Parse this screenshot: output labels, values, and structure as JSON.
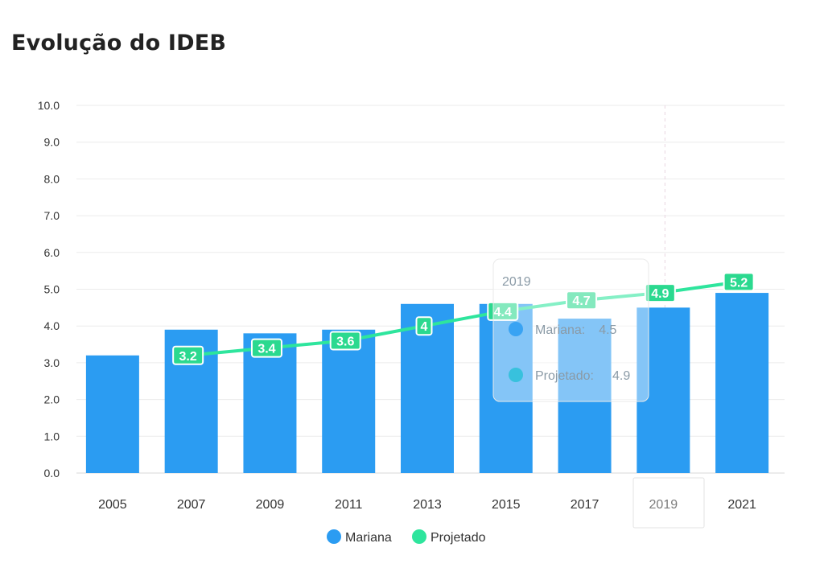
{
  "page": {
    "title": "Evolução do IDEB"
  },
  "chart_data": {
    "type": "bar",
    "title": "Evolução do IDEB",
    "xlabel": "",
    "ylabel": "",
    "ylim": [
      0,
      10
    ],
    "y_ticks": [
      "0.0",
      "1.0",
      "2.0",
      "3.0",
      "4.0",
      "5.0",
      "6.0",
      "7.0",
      "8.0",
      "9.0",
      "10.0"
    ],
    "categories": [
      "2005",
      "2007",
      "2009",
      "2011",
      "2013",
      "2015",
      "2017",
      "2019",
      "2021"
    ],
    "series": [
      {
        "name": "Mariana",
        "type": "bar",
        "color": "#2b9cf2",
        "values": [
          3.2,
          3.9,
          3.8,
          3.9,
          4.6,
          4.6,
          4.2,
          4.5,
          4.9
        ]
      },
      {
        "name": "Projetado",
        "type": "line",
        "color": "#2ee59d",
        "values": [
          null,
          3.2,
          3.4,
          3.6,
          4.0,
          4.4,
          4.7,
          4.9,
          5.2
        ],
        "labels": [
          null,
          "3.2",
          "3.4",
          "3.6",
          "4",
          "4.4",
          "4.7",
          "4.9",
          "5.2"
        ]
      }
    ],
    "legend": {
      "placement": "bottom-center"
    },
    "tooltip": {
      "category": "2019",
      "rows": [
        {
          "label": "Mariana:",
          "value": "4.5",
          "color": "#2b9cf2"
        },
        {
          "label": "Projetado:",
          "value": "4.9",
          "color": "#2ac0d8"
        }
      ]
    }
  }
}
